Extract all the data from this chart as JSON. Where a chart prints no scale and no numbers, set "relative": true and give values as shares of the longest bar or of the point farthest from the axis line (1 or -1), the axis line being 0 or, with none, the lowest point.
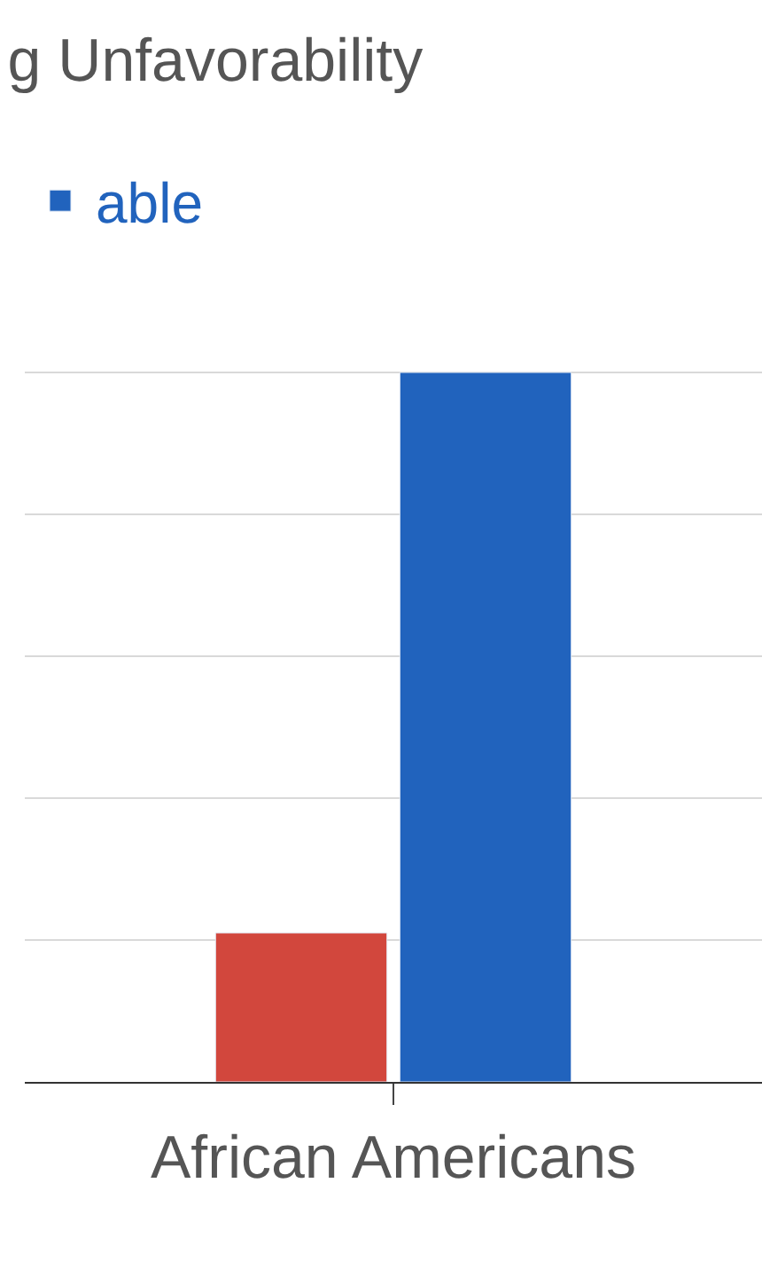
{
  "chart_data": {
    "type": "bar",
    "title": "g Unfavorability",
    "categories": [
      "African Americans"
    ],
    "relative": true,
    "grid": true,
    "legend": "top left",
    "series": [
      {
        "color": "#d2473d",
        "values": [
          0.21
        ]
      },
      {
        "name": "able",
        "color": "#2163bd",
        "values": [
          1
        ]
      }
    ]
  }
}
